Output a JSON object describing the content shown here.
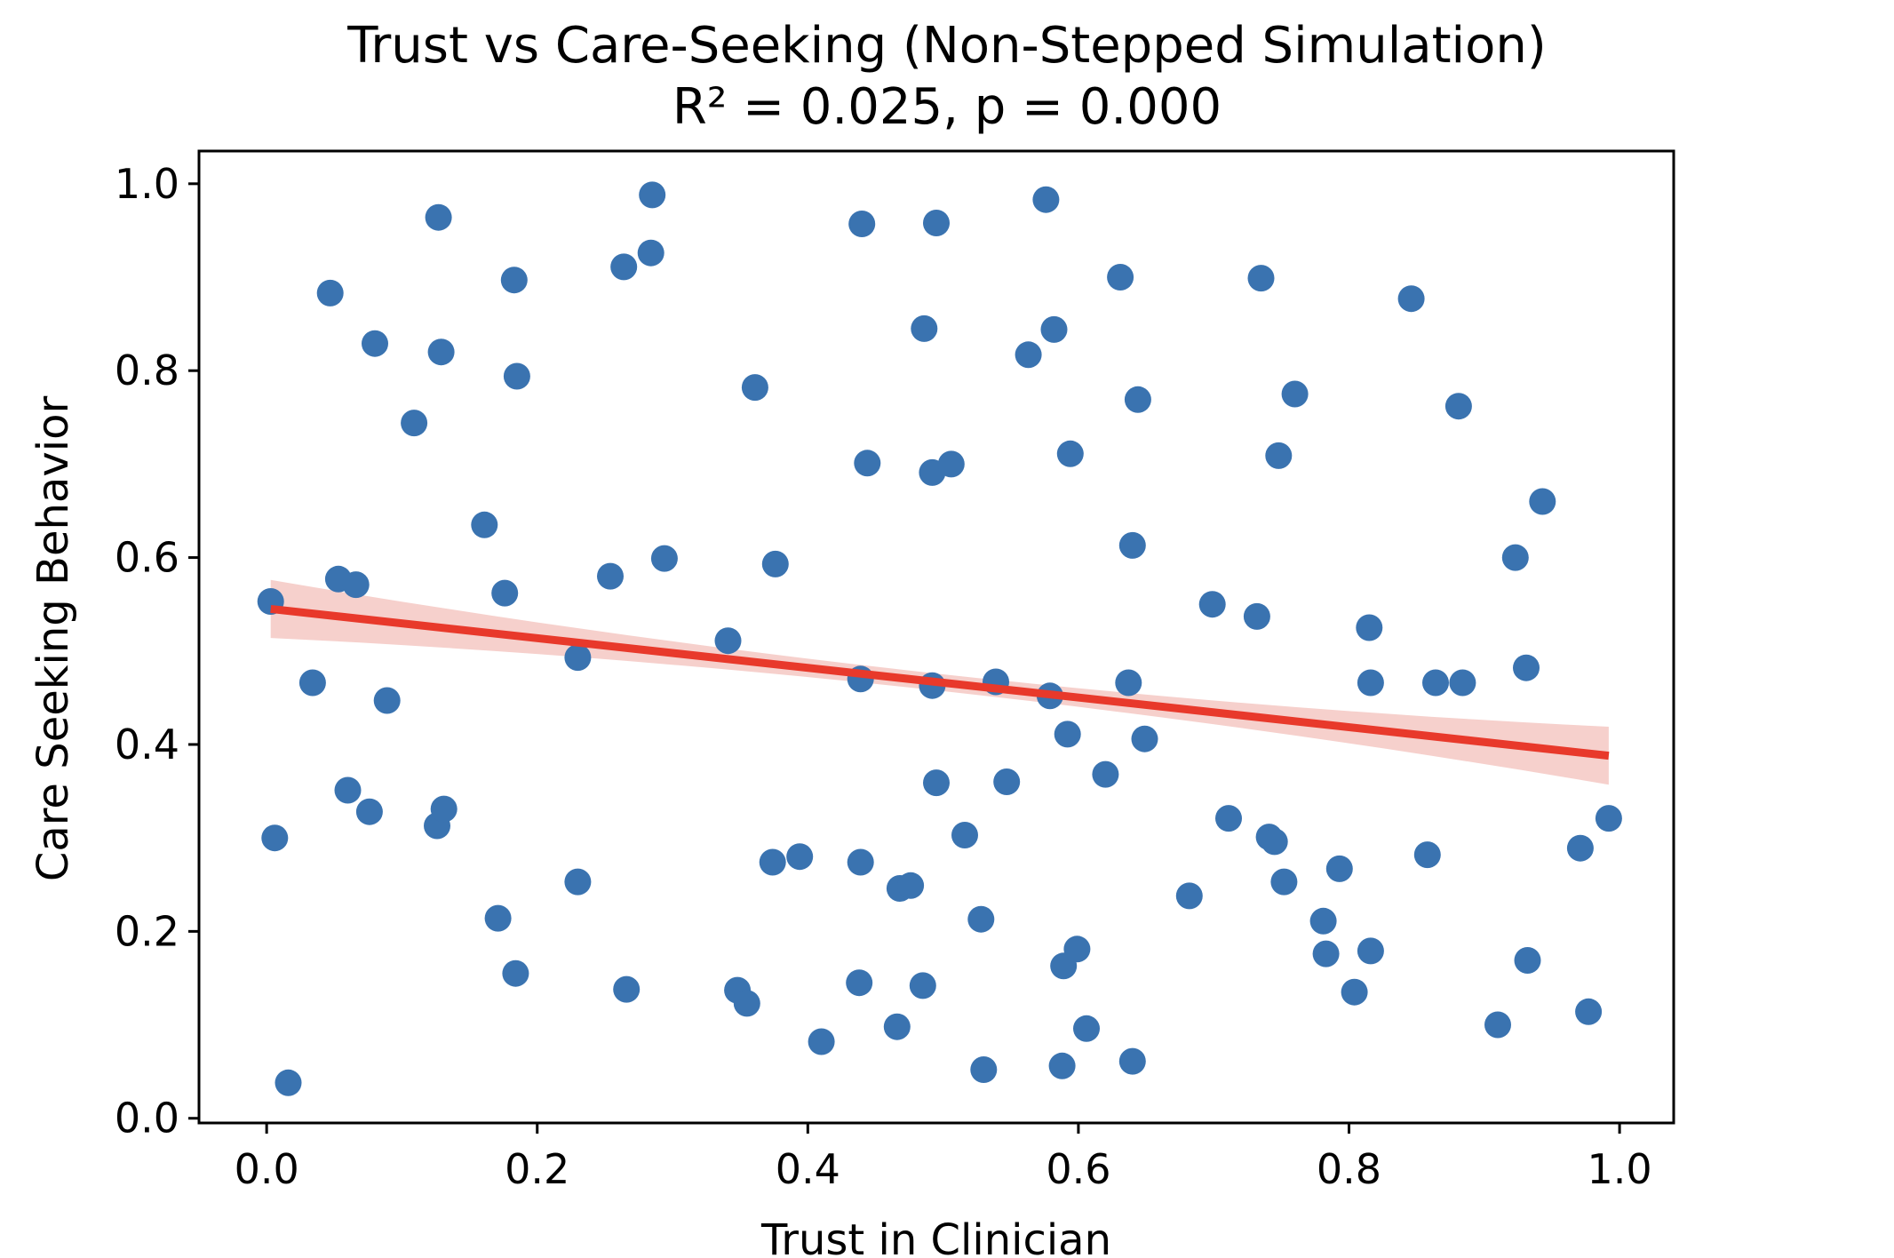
{
  "chart_data": {
    "type": "scatter",
    "title": "Trust vs Care-Seeking (Non-Stepped Simulation)",
    "subtitle": "R² = 0.025, p = 0.000",
    "xlabel": "Trust in Clinician",
    "ylabel": "Care Seeking Behavior",
    "xlim": [
      -0.05,
      1.04
    ],
    "ylim": [
      -0.005,
      1.035
    ],
    "xticks": [
      "0.0",
      "0.2",
      "0.4",
      "0.6",
      "0.8",
      "1.0"
    ],
    "yticks": [
      "0.0",
      "0.2",
      "0.4",
      "0.6",
      "0.8",
      "1.0"
    ],
    "grid": false,
    "point_color": "#3a73b0",
    "fit_color": "#e8392b",
    "ci_color": "#f3c0bb",
    "points": [
      [
        0.003,
        0.553
      ],
      [
        0.006,
        0.3
      ],
      [
        0.016,
        0.038
      ],
      [
        0.034,
        0.466
      ],
      [
        0.047,
        0.883
      ],
      [
        0.053,
        0.577
      ],
      [
        0.06,
        0.351
      ],
      [
        0.066,
        0.571
      ],
      [
        0.076,
        0.328
      ],
      [
        0.08,
        0.829
      ],
      [
        0.089,
        0.447
      ],
      [
        0.109,
        0.744
      ],
      [
        0.126,
        0.313
      ],
      [
        0.127,
        0.964
      ],
      [
        0.129,
        0.82
      ],
      [
        0.131,
        0.331
      ],
      [
        0.161,
        0.635
      ],
      [
        0.171,
        0.214
      ],
      [
        0.176,
        0.562
      ],
      [
        0.183,
        0.897
      ],
      [
        0.184,
        0.155
      ],
      [
        0.185,
        0.794
      ],
      [
        0.23,
        0.493
      ],
      [
        0.23,
        0.253
      ],
      [
        0.254,
        0.58
      ],
      [
        0.264,
        0.911
      ],
      [
        0.266,
        0.138
      ],
      [
        0.284,
        0.926
      ],
      [
        0.285,
        0.988
      ],
      [
        0.294,
        0.599
      ],
      [
        0.341,
        0.511
      ],
      [
        0.348,
        0.137
      ],
      [
        0.355,
        0.123
      ],
      [
        0.361,
        0.782
      ],
      [
        0.374,
        0.274
      ],
      [
        0.376,
        0.593
      ],
      [
        0.394,
        0.28
      ],
      [
        0.41,
        0.082
      ],
      [
        0.438,
        0.145
      ],
      [
        0.439,
        0.274
      ],
      [
        0.439,
        0.47
      ],
      [
        0.44,
        0.957
      ],
      [
        0.444,
        0.701
      ],
      [
        0.466,
        0.098
      ],
      [
        0.468,
        0.246
      ],
      [
        0.476,
        0.249
      ],
      [
        0.485,
        0.142
      ],
      [
        0.486,
        0.845
      ],
      [
        0.492,
        0.463
      ],
      [
        0.492,
        0.691
      ],
      [
        0.495,
        0.359
      ],
      [
        0.495,
        0.958
      ],
      [
        0.506,
        0.7
      ],
      [
        0.516,
        0.303
      ],
      [
        0.528,
        0.213
      ],
      [
        0.53,
        0.052
      ],
      [
        0.539,
        0.467
      ],
      [
        0.547,
        0.36
      ],
      [
        0.563,
        0.817
      ],
      [
        0.576,
        0.983
      ],
      [
        0.579,
        0.452
      ],
      [
        0.582,
        0.844
      ],
      [
        0.588,
        0.056
      ],
      [
        0.589,
        0.163
      ],
      [
        0.592,
        0.411
      ],
      [
        0.594,
        0.711
      ],
      [
        0.599,
        0.181
      ],
      [
        0.606,
        0.096
      ],
      [
        0.62,
        0.368
      ],
      [
        0.631,
        0.9
      ],
      [
        0.637,
        0.466
      ],
      [
        0.64,
        0.061
      ],
      [
        0.64,
        0.613
      ],
      [
        0.644,
        0.769
      ],
      [
        0.649,
        0.406
      ],
      [
        0.682,
        0.238
      ],
      [
        0.699,
        0.55
      ],
      [
        0.711,
        0.321
      ],
      [
        0.732,
        0.537
      ],
      [
        0.735,
        0.899
      ],
      [
        0.741,
        0.301
      ],
      [
        0.745,
        0.296
      ],
      [
        0.748,
        0.709
      ],
      [
        0.752,
        0.253
      ],
      [
        0.76,
        0.775
      ],
      [
        0.781,
        0.211
      ],
      [
        0.783,
        0.176
      ],
      [
        0.793,
        0.267
      ],
      [
        0.804,
        0.135
      ],
      [
        0.815,
        0.525
      ],
      [
        0.816,
        0.466
      ],
      [
        0.816,
        0.179
      ],
      [
        0.846,
        0.877
      ],
      [
        0.858,
        0.282
      ],
      [
        0.864,
        0.466
      ],
      [
        0.881,
        0.762
      ],
      [
        0.884,
        0.466
      ],
      [
        0.91,
        0.1
      ],
      [
        0.923,
        0.6
      ],
      [
        0.931,
        0.482
      ],
      [
        0.932,
        0.169
      ],
      [
        0.943,
        0.66
      ],
      [
        0.971,
        0.289
      ],
      [
        0.977,
        0.114
      ],
      [
        0.992,
        0.321
      ]
    ],
    "fit": {
      "x": [
        0.003,
        0.992
      ],
      "y": [
        0.545,
        0.388
      ]
    }
  }
}
